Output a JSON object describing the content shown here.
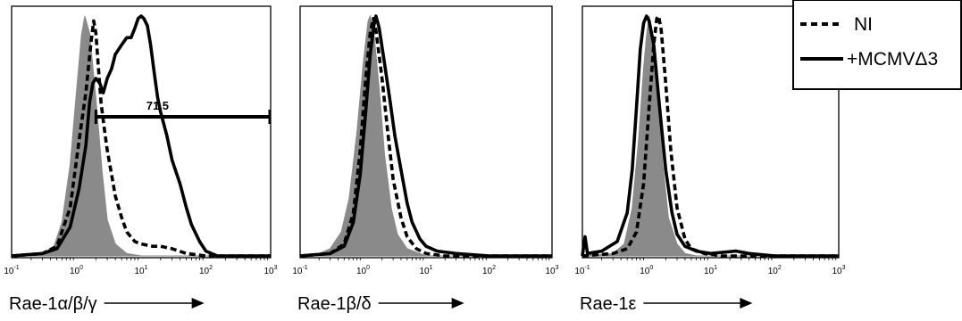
{
  "colors": {
    "isotype_fill": "#8a8a8a",
    "line": "#000000",
    "background": "#ffffff"
  },
  "legend": {
    "items": [
      {
        "label": "NI",
        "style": "dashed"
      },
      {
        "label": "+MCMVΔ3",
        "style": "solid"
      }
    ],
    "placement": "top-right"
  },
  "chart_data": [
    {
      "type": "line",
      "xscale": "log",
      "xlim": [
        0.1,
        1000
      ],
      "ylim": [
        0,
        100
      ],
      "x_ticks": [
        0.1,
        1,
        10,
        100,
        1000
      ],
      "x_tick_labels": [
        {
          "base": "10",
          "exp": "-1"
        },
        {
          "base": "10",
          "exp": "0"
        },
        {
          "base": "10",
          "exp": "1"
        },
        {
          "base": "10",
          "exp": "2"
        },
        {
          "base": "10",
          "exp": "3"
        }
      ],
      "xlabel": "Rae-1α/β/γ",
      "gate": {
        "from": 2,
        "to": 1000,
        "label": "71.5",
        "y": 58
      },
      "series": [
        {
          "name": "isotype",
          "style": "filled",
          "points": [
            [
              0.1,
              0
            ],
            [
              0.2,
              0.5
            ],
            [
              0.3,
              1
            ],
            [
              0.45,
              4
            ],
            [
              0.6,
              14
            ],
            [
              0.8,
              38
            ],
            [
              1.0,
              68
            ],
            [
              1.2,
              92
            ],
            [
              1.35,
              100
            ],
            [
              1.6,
              93
            ],
            [
              2.0,
              66
            ],
            [
              2.5,
              35
            ],
            [
              3.0,
              15
            ],
            [
              4.0,
              5
            ],
            [
              6.0,
              1
            ],
            [
              10,
              0
            ],
            [
              1000,
              0
            ]
          ]
        },
        {
          "name": "NI",
          "style": "dashed",
          "points": [
            [
              0.1,
              0
            ],
            [
              0.3,
              1
            ],
            [
              0.5,
              4
            ],
            [
              0.8,
              20
            ],
            [
              1.1,
              48
            ],
            [
              1.4,
              68
            ],
            [
              1.7,
              90
            ],
            [
              1.85,
              98
            ],
            [
              2.0,
              93
            ],
            [
              2.2,
              78
            ],
            [
              2.4,
              64
            ],
            [
              2.7,
              53
            ],
            [
              3.0,
              44
            ],
            [
              3.5,
              34
            ],
            [
              4.0,
              25
            ],
            [
              5.0,
              16
            ],
            [
              6.0,
              10
            ],
            [
              8.0,
              6
            ],
            [
              10,
              5
            ],
            [
              15,
              4
            ],
            [
              20,
              4
            ],
            [
              30,
              3
            ],
            [
              50,
              1
            ],
            [
              100,
              0
            ],
            [
              1000,
              0
            ]
          ]
        },
        {
          "name": "+MCMVΔ3",
          "style": "solid",
          "points": [
            [
              0.1,
              0
            ],
            [
              0.3,
              1
            ],
            [
              0.5,
              3
            ],
            [
              0.8,
              12
            ],
            [
              1.1,
              28
            ],
            [
              1.4,
              46
            ],
            [
              1.6,
              64
            ],
            [
              1.8,
              72
            ],
            [
              2.0,
              74
            ],
            [
              2.3,
              72
            ],
            [
              2.6,
              68
            ],
            [
              3.0,
              74
            ],
            [
              3.5,
              78
            ],
            [
              4.0,
              84
            ],
            [
              5.0,
              88
            ],
            [
              6.0,
              91
            ],
            [
              7.0,
              91
            ],
            [
              8.0,
              95
            ],
            [
              9.0,
              99
            ],
            [
              10,
              100
            ],
            [
              11,
              99
            ],
            [
              12.5,
              96
            ],
            [
              14,
              88
            ],
            [
              16,
              76
            ],
            [
              18,
              66
            ],
            [
              20,
              60
            ],
            [
              25,
              50
            ],
            [
              30,
              40
            ],
            [
              40,
              30
            ],
            [
              50,
              20
            ],
            [
              60,
              13
            ],
            [
              80,
              6
            ],
            [
              100,
              2
            ],
            [
              150,
              0
            ],
            [
              1000,
              0
            ]
          ]
        }
      ]
    },
    {
      "type": "line",
      "xscale": "log",
      "xlim": [
        0.1,
        1000
      ],
      "ylim": [
        0,
        100
      ],
      "x_ticks": [
        0.1,
        1,
        10,
        100,
        1000
      ],
      "x_tick_labels": [
        {
          "base": "10",
          "exp": "-1"
        },
        {
          "base": "10",
          "exp": "0"
        },
        {
          "base": "10",
          "exp": "1"
        },
        {
          "base": "10",
          "exp": "2"
        },
        {
          "base": "10",
          "exp": "3"
        }
      ],
      "xlabel": "Rae-1β/δ",
      "series": [
        {
          "name": "isotype",
          "style": "filled",
          "points": [
            [
              0.1,
              0
            ],
            [
              0.2,
              1
            ],
            [
              0.3,
              3
            ],
            [
              0.45,
              10
            ],
            [
              0.6,
              24
            ],
            [
              0.8,
              52
            ],
            [
              1.0,
              80
            ],
            [
              1.2,
              98
            ],
            [
              1.3,
              100
            ],
            [
              1.5,
              92
            ],
            [
              1.8,
              70
            ],
            [
              2.2,
              42
            ],
            [
              2.8,
              20
            ],
            [
              3.5,
              9
            ],
            [
              5.0,
              3
            ],
            [
              8.0,
              1
            ],
            [
              10,
              0
            ],
            [
              1000,
              0
            ]
          ]
        },
        {
          "name": "NI",
          "style": "dashed",
          "points": [
            [
              0.1,
              0
            ],
            [
              0.3,
              1
            ],
            [
              0.5,
              5
            ],
            [
              0.7,
              18
            ],
            [
              0.9,
              44
            ],
            [
              1.1,
              74
            ],
            [
              1.3,
              93
            ],
            [
              1.45,
              99
            ],
            [
              1.6,
              94
            ],
            [
              2.0,
              74
            ],
            [
              2.5,
              50
            ],
            [
              3.0,
              32
            ],
            [
              4.0,
              16
            ],
            [
              5.0,
              8
            ],
            [
              7.0,
              3
            ],
            [
              10,
              1
            ],
            [
              20,
              0
            ],
            [
              1000,
              0
            ]
          ]
        },
        {
          "name": "+MCMVΔ3",
          "style": "solid",
          "points": [
            [
              0.1,
              0
            ],
            [
              0.3,
              1
            ],
            [
              0.5,
              4
            ],
            [
              0.7,
              14
            ],
            [
              0.9,
              34
            ],
            [
              1.1,
              60
            ],
            [
              1.3,
              84
            ],
            [
              1.5,
              97
            ],
            [
              1.6,
              100
            ],
            [
              1.8,
              95
            ],
            [
              2.2,
              80
            ],
            [
              2.7,
              64
            ],
            [
              3.2,
              50
            ],
            [
              4.0,
              36
            ],
            [
              5.0,
              22
            ],
            [
              6.0,
              14
            ],
            [
              8.0,
              7
            ],
            [
              10,
              4
            ],
            [
              15,
              2
            ],
            [
              30,
              1
            ],
            [
              100,
              0
            ],
            [
              1000,
              0
            ]
          ]
        }
      ]
    },
    {
      "type": "line",
      "xscale": "log",
      "xlim": [
        0.1,
        1000
      ],
      "ylim": [
        0,
        100
      ],
      "x_ticks": [
        0.1,
        1,
        10,
        100,
        1000
      ],
      "x_tick_labels": [
        {
          "base": "10",
          "exp": "-1"
        },
        {
          "base": "10",
          "exp": "0"
        },
        {
          "base": "10",
          "exp": "1"
        },
        {
          "base": "10",
          "exp": "2"
        },
        {
          "base": "10",
          "exp": "3"
        }
      ],
      "xlabel": "Rae-1ε",
      "series": [
        {
          "name": "isotype",
          "style": "filled",
          "points": [
            [
              0.1,
              0
            ],
            [
              0.3,
              1
            ],
            [
              0.45,
              5
            ],
            [
              0.6,
              20
            ],
            [
              0.75,
              48
            ],
            [
              0.9,
              78
            ],
            [
              1.0,
              92
            ],
            [
              1.1,
              100
            ],
            [
              1.25,
              92
            ],
            [
              1.5,
              66
            ],
            [
              1.8,
              38
            ],
            [
              2.2,
              16
            ],
            [
              3.0,
              5
            ],
            [
              4.0,
              1
            ],
            [
              6.0,
              0
            ],
            [
              1000,
              0
            ]
          ]
        },
        {
          "name": "NI",
          "style": "dashed",
          "points": [
            [
              0.1,
              0
            ],
            [
              0.3,
              1
            ],
            [
              0.5,
              3
            ],
            [
              0.7,
              10
            ],
            [
              0.9,
              30
            ],
            [
              1.1,
              62
            ],
            [
              1.3,
              88
            ],
            [
              1.45,
              99
            ],
            [
              1.55,
              100
            ],
            [
              1.7,
              94
            ],
            [
              2.0,
              72
            ],
            [
              2.4,
              44
            ],
            [
              3.0,
              20
            ],
            [
              4.0,
              7
            ],
            [
              5.0,
              3
            ],
            [
              8.0,
              1
            ],
            [
              15,
              0
            ],
            [
              1000,
              0
            ]
          ]
        },
        {
          "name": "+MCMVΔ3",
          "style": "solid",
          "points": [
            [
              0.1,
              0
            ],
            [
              0.11,
              8
            ],
            [
              0.12,
              1
            ],
            [
              0.2,
              2
            ],
            [
              0.35,
              6
            ],
            [
              0.5,
              18
            ],
            [
              0.6,
              36
            ],
            [
              0.7,
              62
            ],
            [
              0.8,
              86
            ],
            [
              0.9,
              97
            ],
            [
              1.0,
              100
            ],
            [
              1.1,
              98
            ],
            [
              1.3,
              88
            ],
            [
              1.6,
              62
            ],
            [
              2.0,
              36
            ],
            [
              2.5,
              18
            ],
            [
              3.0,
              9
            ],
            [
              4.0,
              4
            ],
            [
              6.0,
              2
            ],
            [
              10,
              1
            ],
            [
              25,
              2
            ],
            [
              40,
              1
            ],
            [
              100,
              0
            ],
            [
              1000,
              0
            ]
          ]
        }
      ]
    }
  ]
}
